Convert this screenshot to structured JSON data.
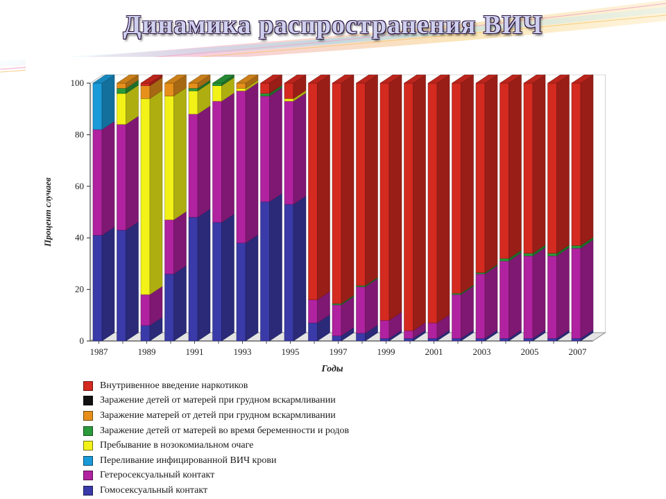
{
  "slide": {
    "title": "Динамика распространения ВИЧ"
  },
  "colors": {
    "idu": "#d42a20",
    "breastfeed_child": "#111111",
    "breastfeed_mother": "#e6901b",
    "perinatal": "#2a9a3a",
    "nosocomial": "#f2f218",
    "transfusion": "#1a9ad8",
    "hetero": "#b0229f",
    "homo": "#3a3aa8"
  },
  "chart_data": {
    "type": "bar",
    "stacked": true,
    "three_d": true,
    "xlabel": "Годы",
    "ylabel": "Процент случаев",
    "ylim": [
      0,
      100
    ],
    "yticks": [
      "0",
      "20",
      "40",
      "60",
      "80",
      "100"
    ],
    "categories": [
      1987,
      1988,
      1989,
      1990,
      1991,
      1992,
      1993,
      1994,
      1995,
      1996,
      1997,
      1998,
      1999,
      2000,
      2001,
      2002,
      2003,
      2004,
      2005,
      2006,
      2007
    ],
    "xtick_labels": [
      "1987",
      "1989",
      "1991",
      "1993",
      "1995",
      "1997",
      "1999",
      "2001",
      "2003",
      "2005",
      "2007"
    ],
    "legend_position": "bottom",
    "series": [
      {
        "key": "homo",
        "name": "Гомосексуальный контакт",
        "values": [
          41,
          43,
          6,
          26,
          48,
          46,
          38,
          54,
          53,
          7,
          2,
          3,
          1,
          1,
          1,
          1,
          1,
          1,
          1,
          1,
          1
        ]
      },
      {
        "key": "hetero",
        "name": "Гетеросексуальный контакт",
        "values": [
          41,
          41,
          12,
          21,
          40,
          47,
          59,
          41,
          40,
          9,
          12,
          18,
          7,
          3,
          6,
          17,
          25,
          30,
          32,
          32,
          35
        ]
      },
      {
        "key": "transfusion",
        "name": "Переливание  инфицированной ВИЧ крови",
        "values": [
          18,
          0,
          0,
          0,
          0,
          0,
          0,
          0,
          0,
          0,
          0,
          0,
          0,
          0,
          0,
          0,
          0,
          0,
          0,
          0,
          0
        ]
      },
      {
        "key": "nosocomial",
        "name": "Пребывание в нозокомиальном очаге",
        "values": [
          0,
          12,
          76,
          48,
          9,
          6,
          1,
          0,
          1,
          0,
          0,
          0,
          0,
          0,
          0,
          0,
          0,
          0,
          0,
          0,
          0
        ]
      },
      {
        "key": "perinatal",
        "name": "Заражение детей от матерей во время беременности и  родов",
        "values": [
          0,
          2,
          0,
          0,
          1,
          1,
          0,
          1,
          0,
          0,
          0.5,
          0.5,
          0,
          0,
          0,
          0.5,
          0.5,
          1,
          1,
          1,
          1
        ]
      },
      {
        "key": "breastfeed_mother",
        "name": "Заражение матерей от детей при грудном вскармливании",
        "values": [
          0,
          2,
          5,
          5,
          2,
          0,
          2,
          0,
          0,
          0,
          0,
          0,
          0,
          0,
          0,
          0,
          0,
          0,
          0,
          0,
          0
        ]
      },
      {
        "key": "breastfeed_child",
        "name": "Заражение детей от матерей при грудном вскармливании",
        "values": [
          0,
          0,
          0,
          0,
          0,
          0,
          0,
          0,
          0,
          0,
          0,
          0,
          0,
          0,
          0,
          0,
          0,
          0,
          0,
          0,
          0
        ]
      },
      {
        "key": "idu",
        "name": "Внутривенное введение наркотиков",
        "values": [
          0,
          0,
          1,
          0,
          0,
          0,
          0,
          4,
          6,
          84,
          85.5,
          78.5,
          92,
          96,
          93,
          81.5,
          73.5,
          68,
          66,
          66,
          63
        ]
      }
    ],
    "legend_order": [
      "idu",
      "breastfeed_child",
      "breastfeed_mother",
      "perinatal",
      "nosocomial",
      "transfusion",
      "hetero",
      "homo"
    ]
  }
}
